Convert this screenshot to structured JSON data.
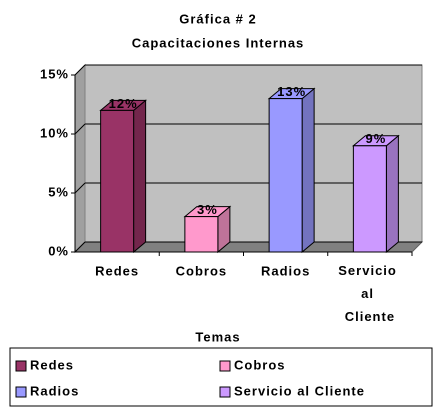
{
  "chart_data": {
    "type": "bar3d",
    "title": "Gráfica # 2",
    "subtitle": "Capacitaciones Internas",
    "x_label": "Temas",
    "categories": [
      "Redes",
      "Cobros",
      "Radios",
      "Servicio al Cliente"
    ],
    "values": [
      12,
      3,
      13,
      9
    ],
    "value_labels": [
      "12%",
      "3%",
      "13%",
      "9%"
    ],
    "colors": [
      "#993366",
      "#ff99cc",
      "#9999ff",
      "#cc99ff"
    ],
    "ylim": [
      0,
      15
    ],
    "yticks": [
      {
        "value": 0,
        "label": "0%"
      },
      {
        "value": 5,
        "label": "5%"
      },
      {
        "value": 10,
        "label": "10%"
      },
      {
        "value": 15,
        "label": "15%"
      }
    ],
    "grid": true,
    "legend": "bottom"
  }
}
